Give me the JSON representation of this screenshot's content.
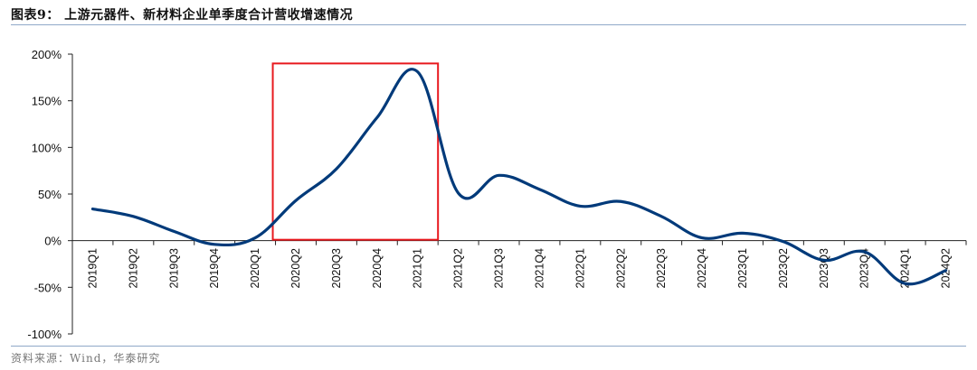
{
  "title": "图表9：  上游元器件、新材料企业单季度合计营收增速情况",
  "source": "资料来源：Wind，华泰研究",
  "colors": {
    "line": "#003a7a",
    "highlight_box": "#e8191e",
    "axis": "#222222",
    "rule": "#8fa8c8"
  },
  "chart_data": {
    "type": "line",
    "title": "上游元器件、新材料企业单季度合计营收增速情况",
    "xlabel": "",
    "ylabel": "",
    "categories": [
      "2019Q1",
      "2019Q2",
      "2019Q3",
      "2019Q4",
      "2020Q1",
      "2020Q2",
      "2020Q3",
      "2020Q4",
      "2021Q1",
      "2021Q2",
      "2021Q3",
      "2021Q4",
      "2022Q1",
      "2022Q2",
      "2022Q3",
      "2022Q4",
      "2023Q1",
      "2023Q2",
      "2023Q3",
      "2023Q4",
      "2024Q1",
      "2024Q2"
    ],
    "series": [
      {
        "name": "单季度合计营收增速",
        "values": [
          34,
          26,
          10,
          -4,
          3,
          43,
          77,
          132,
          181,
          51,
          70,
          55,
          37,
          42,
          26,
          3,
          8,
          -1,
          -21,
          -12,
          -46,
          -32
        ]
      }
    ],
    "yticks": [
      "200%",
      "150%",
      "100%",
      "50%",
      "0%",
      "-50%",
      "-100%"
    ],
    "ylim": [
      -100,
      200
    ],
    "grid": false,
    "legend": "none",
    "annotations": [
      {
        "type": "rectangle",
        "color": "#e8191e",
        "x_from": "2020Q2",
        "x_to": "2021Q1",
        "y_from": 0,
        "y_to": 190
      }
    ]
  }
}
